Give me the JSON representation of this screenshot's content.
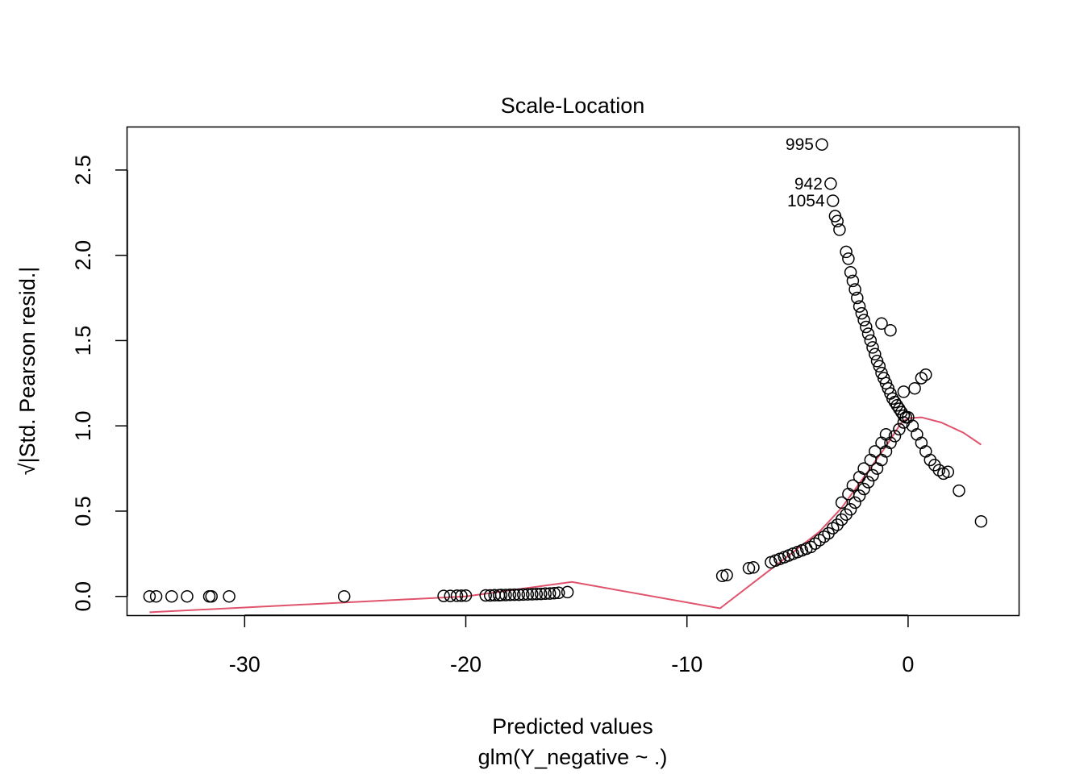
{
  "chart_data": {
    "type": "scatter",
    "title": "Scale-Location",
    "xlabel": "Predicted values",
    "xlabel2": "glm(Y_negative ~ .)",
    "ylabel": "√|Std. Pearson resid.|",
    "xlim": [
      -35.3,
      5.0
    ],
    "ylim": [
      -0.11,
      2.75
    ],
    "x_ticks": [
      -30,
      -20,
      -10,
      0
    ],
    "x_tick_labels": [
      "-30",
      "-20",
      "-10",
      "0"
    ],
    "y_ticks": [
      0.0,
      0.5,
      1.0,
      1.5,
      2.0,
      2.5
    ],
    "y_tick_labels": [
      "0.0",
      "0.5",
      "1.0",
      "1.5",
      "2.0",
      "2.5"
    ],
    "point_color": "#000000",
    "smooth_color": "#DF536B",
    "points": [
      [
        -34.3,
        0.0
      ],
      [
        -34.0,
        0.0
      ],
      [
        -33.3,
        0.0
      ],
      [
        -32.6,
        0.0
      ],
      [
        -31.6,
        0.0
      ],
      [
        -31.5,
        0.0
      ],
      [
        -30.7,
        0.0
      ],
      [
        -25.5,
        0.0
      ],
      [
        -21.0,
        0.003
      ],
      [
        -20.7,
        0.003
      ],
      [
        -20.4,
        0.004
      ],
      [
        -20.2,
        0.004
      ],
      [
        -20.0,
        0.005
      ],
      [
        -19.1,
        0.006
      ],
      [
        -18.9,
        0.006
      ],
      [
        -18.7,
        0.007
      ],
      [
        -18.5,
        0.007
      ],
      [
        -18.4,
        0.008
      ],
      [
        -18.2,
        0.008
      ],
      [
        -18.0,
        0.009
      ],
      [
        -17.8,
        0.01
      ],
      [
        -17.6,
        0.01
      ],
      [
        -17.4,
        0.011
      ],
      [
        -17.2,
        0.012
      ],
      [
        -17.0,
        0.013
      ],
      [
        -16.8,
        0.014
      ],
      [
        -16.6,
        0.015
      ],
      [
        -16.4,
        0.016
      ],
      [
        -16.2,
        0.017
      ],
      [
        -16.0,
        0.019
      ],
      [
        -15.8,
        0.021
      ],
      [
        -15.4,
        0.025
      ],
      [
        -8.4,
        0.12
      ],
      [
        -8.2,
        0.125
      ],
      [
        -7.2,
        0.165
      ],
      [
        -7.0,
        0.17
      ],
      [
        -6.2,
        0.2
      ],
      [
        -6.0,
        0.21
      ],
      [
        -5.8,
        0.22
      ],
      [
        -5.6,
        0.23
      ],
      [
        -5.4,
        0.24
      ],
      [
        -5.2,
        0.25
      ],
      [
        -5.0,
        0.26
      ],
      [
        -4.8,
        0.27
      ],
      [
        -4.6,
        0.28
      ],
      [
        -4.4,
        0.29
      ],
      [
        -4.2,
        0.31
      ],
      [
        -4.0,
        0.33
      ],
      [
        -3.8,
        0.35
      ],
      [
        -3.6,
        0.37
      ],
      [
        -3.4,
        0.4
      ],
      [
        -3.2,
        0.42
      ],
      [
        -3.0,
        0.45
      ],
      [
        -2.8,
        0.48
      ],
      [
        -2.6,
        0.51
      ],
      [
        -2.4,
        0.55
      ],
      [
        -2.2,
        0.59
      ],
      [
        -2.0,
        0.63
      ],
      [
        -1.8,
        0.67
      ],
      [
        -1.6,
        0.71
      ],
      [
        -1.4,
        0.75
      ],
      [
        -1.2,
        0.8
      ],
      [
        -1.0,
        0.85
      ],
      [
        -0.8,
        0.9
      ],
      [
        -0.6,
        0.94
      ],
      [
        -0.4,
        0.98
      ],
      [
        -0.2,
        1.02
      ],
      [
        0.0,
        1.05
      ],
      [
        -3.0,
        0.55
      ],
      [
        -2.7,
        0.6
      ],
      [
        -2.5,
        0.65
      ],
      [
        -2.2,
        0.7
      ],
      [
        -2.0,
        0.75
      ],
      [
        -1.7,
        0.8
      ],
      [
        -1.5,
        0.85
      ],
      [
        -1.2,
        0.9
      ],
      [
        -1.0,
        0.95
      ],
      [
        -3.9,
        2.65
      ],
      [
        -3.5,
        2.42
      ],
      [
        -3.4,
        2.32
      ],
      [
        -3.3,
        2.23
      ],
      [
        -3.2,
        2.2
      ],
      [
        -3.1,
        2.15
      ],
      [
        -2.8,
        2.02
      ],
      [
        -2.7,
        1.98
      ],
      [
        -2.6,
        1.9
      ],
      [
        -2.5,
        1.85
      ],
      [
        -2.4,
        1.8
      ],
      [
        -2.3,
        1.75
      ],
      [
        -2.2,
        1.7
      ],
      [
        -2.1,
        1.66
      ],
      [
        -2.0,
        1.62
      ],
      [
        -1.9,
        1.58
      ],
      [
        -1.8,
        1.54
      ],
      [
        -1.7,
        1.5
      ],
      [
        -1.6,
        1.46
      ],
      [
        -1.5,
        1.42
      ],
      [
        -1.4,
        1.38
      ],
      [
        -1.3,
        1.35
      ],
      [
        -1.2,
        1.31
      ],
      [
        -1.1,
        1.28
      ],
      [
        -1.0,
        1.25
      ],
      [
        -0.9,
        1.22
      ],
      [
        -0.8,
        1.19
      ],
      [
        -0.7,
        1.16
      ],
      [
        -0.6,
        1.14
      ],
      [
        -0.5,
        1.12
      ],
      [
        -0.4,
        1.1
      ],
      [
        -0.3,
        1.08
      ],
      [
        -0.2,
        1.06
      ],
      [
        -0.1,
        1.05
      ],
      [
        -0.8,
        1.56
      ],
      [
        -1.2,
        1.6
      ],
      [
        -0.2,
        1.2
      ],
      [
        0.3,
        1.22
      ],
      [
        0.6,
        1.28
      ],
      [
        0.8,
        1.3
      ],
      [
        0.2,
        1.0
      ],
      [
        0.4,
        0.95
      ],
      [
        0.6,
        0.9
      ],
      [
        0.8,
        0.85
      ],
      [
        1.0,
        0.8
      ],
      [
        1.2,
        0.77
      ],
      [
        1.4,
        0.74
      ],
      [
        1.6,
        0.72
      ],
      [
        1.8,
        0.73
      ],
      [
        2.3,
        0.62
      ],
      [
        3.3,
        0.44
      ]
    ],
    "point_labels": [
      {
        "x": -3.9,
        "y": 2.65,
        "label": "995"
      },
      {
        "x": -3.5,
        "y": 2.42,
        "label": "942"
      },
      {
        "x": -3.4,
        "y": 2.32,
        "label": "1054"
      }
    ],
    "smooth_line": [
      [
        -34.3,
        -0.093
      ],
      [
        -20.0,
        0.0
      ],
      [
        -15.2,
        0.085
      ],
      [
        -8.5,
        -0.07
      ],
      [
        -6.0,
        0.18
      ],
      [
        -4.0,
        0.38
      ],
      [
        -3.0,
        0.52
      ],
      [
        -2.0,
        0.7
      ],
      [
        -1.0,
        0.88
      ],
      [
        -0.3,
        1.02
      ],
      [
        0.0,
        1.045
      ],
      [
        0.6,
        1.05
      ],
      [
        1.5,
        1.02
      ],
      [
        2.5,
        0.96
      ],
      [
        3.3,
        0.89
      ]
    ]
  }
}
